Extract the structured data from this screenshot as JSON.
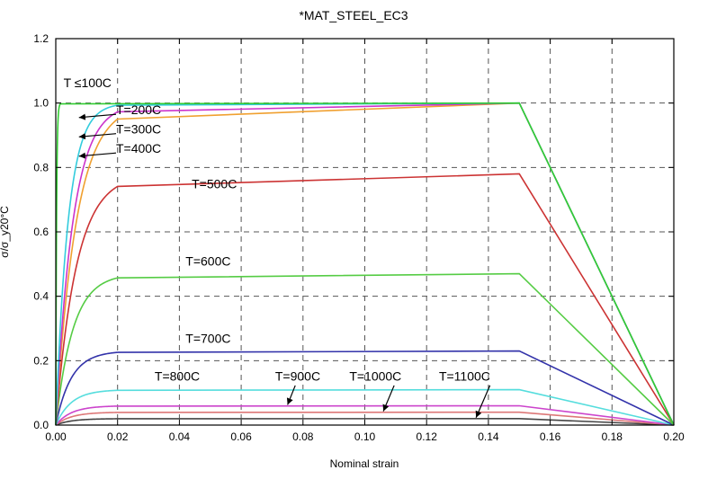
{
  "chart_data": {
    "type": "line",
    "title": "*MAT_STEEL_EC3",
    "xlabel": "Nominal strain",
    "ylabel": "σ/σ_y20°C",
    "xlim": [
      0,
      0.2
    ],
    "ylim": [
      0,
      1.2
    ],
    "xticks": [
      "0.00",
      "0.02",
      "0.04",
      "0.06",
      "0.08",
      "0.10",
      "0.12",
      "0.14",
      "0.16",
      "0.18",
      "0.20"
    ],
    "yticks": [
      "0.0",
      "0.2",
      "0.4",
      "0.6",
      "0.8",
      "1.0",
      "1.2"
    ],
    "grid": true,
    "series": [
      {
        "name": "T ≤100C",
        "color": "#33cc33",
        "peak": 1.0,
        "k": 4000,
        "x": [
          0,
          0.0015,
          0.15,
          0.2
        ],
        "y": [
          0,
          1.0,
          1.0,
          0
        ]
      },
      {
        "name": "T=200C",
        "color": "#33ccdd",
        "peak": 1.0,
        "k": 250,
        "x": [
          0,
          0.02,
          0.15,
          0.2
        ],
        "y": [
          0,
          1.0,
          1.0,
          0
        ]
      },
      {
        "name": "T=300C",
        "color": "#cc33cc",
        "peak": 1.0,
        "k": 180,
        "x": [
          0,
          0.02,
          0.15,
          0.2
        ],
        "y": [
          0,
          1.0,
          1.0,
          0
        ]
      },
      {
        "name": "T=400C",
        "color": "#f0a030",
        "peak": 1.0,
        "k": 150,
        "x": [
          0,
          0.02,
          0.15,
          0.2
        ],
        "y": [
          0,
          1.0,
          1.0,
          0
        ]
      },
      {
        "name": "T=500C",
        "color": "#cc3333",
        "peak": 0.78,
        "k": 150,
        "x": [
          0,
          0.02,
          0.15,
          0.2
        ],
        "y": [
          0,
          0.78,
          0.78,
          0
        ]
      },
      {
        "name": "T=600C",
        "color": "#55cc44",
        "peak": 0.47,
        "k": 180,
        "x": [
          0,
          0.02,
          0.15,
          0.2
        ],
        "y": [
          0,
          0.47,
          0.47,
          0
        ]
      },
      {
        "name": "T=700C",
        "color": "#3333aa",
        "peak": 0.23,
        "k": 200,
        "x": [
          0,
          0.02,
          0.15,
          0.2
        ],
        "y": [
          0,
          0.23,
          0.23,
          0
        ]
      },
      {
        "name": "T=800C",
        "color": "#55dddd",
        "peak": 0.11,
        "k": 200,
        "x": [
          0,
          0.02,
          0.15,
          0.2
        ],
        "y": [
          0,
          0.11,
          0.11,
          0
        ]
      },
      {
        "name": "T=900C",
        "color": "#cc44cc",
        "peak": 0.06,
        "k": 200,
        "x": [
          0,
          0.02,
          0.15,
          0.2
        ],
        "y": [
          0,
          0.06,
          0.06,
          0
        ]
      },
      {
        "name": "T=1000C",
        "color": "#dd7777",
        "peak": 0.04,
        "k": 200,
        "x": [
          0,
          0.02,
          0.15,
          0.2
        ],
        "y": [
          0,
          0.04,
          0.04,
          0
        ]
      },
      {
        "name": "T=1100C",
        "color": "#444444",
        "peak": 0.02,
        "k": 200,
        "x": [
          0,
          0.02,
          0.15,
          0.2
        ],
        "y": [
          0,
          0.02,
          0.02,
          0
        ]
      }
    ],
    "annotations": [
      {
        "text": "T ≤100C",
        "at": [
          0.0025,
          1.05
        ]
      },
      {
        "text": "T=200C",
        "at": [
          0.0195,
          0.965
        ]
      },
      {
        "text": "T=300C",
        "at": [
          0.0195,
          0.905
        ]
      },
      {
        "text": "T=400C",
        "at": [
          0.0195,
          0.845
        ]
      },
      {
        "text": "T=500C",
        "at": [
          0.044,
          0.735
        ]
      },
      {
        "text": "T=600C",
        "at": [
          0.042,
          0.495
        ]
      },
      {
        "text": "T=700C",
        "at": [
          0.042,
          0.255
        ]
      },
      {
        "text": "T=800C",
        "at": [
          0.032,
          0.138
        ]
      },
      {
        "text": "T=900C",
        "at": [
          0.071,
          0.138
        ]
      },
      {
        "text": "T=1000C",
        "at": [
          0.095,
          0.138
        ]
      },
      {
        "text": "T=1100C",
        "at": [
          0.124,
          0.138
        ]
      }
    ],
    "arrows": [
      {
        "from": [
          0.0195,
          0.965
        ],
        "to": [
          0.0075,
          0.955
        ]
      },
      {
        "from": [
          0.0195,
          0.905
        ],
        "to": [
          0.0075,
          0.895
        ]
      },
      {
        "from": [
          0.0195,
          0.845
        ],
        "to": [
          0.0075,
          0.835
        ]
      },
      {
        "from": [
          0.0775,
          0.123
        ],
        "to": [
          0.075,
          0.063
        ]
      },
      {
        "from": [
          0.1095,
          0.123
        ],
        "to": [
          0.106,
          0.043
        ]
      },
      {
        "from": [
          0.1405,
          0.123
        ],
        "to": [
          0.136,
          0.023
        ]
      }
    ]
  }
}
